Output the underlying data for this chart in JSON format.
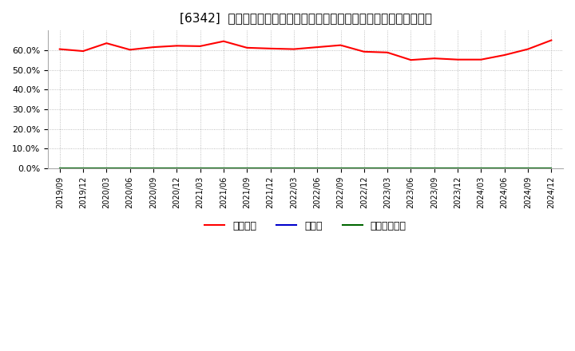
{
  "title": "[6342]  自己資本、のれん、繰延税金資産の総資産に対する比率の推移",
  "dates": [
    "2019/09",
    "2019/12",
    "2020/03",
    "2020/06",
    "2020/09",
    "2020/12",
    "2021/03",
    "2021/06",
    "2021/09",
    "2021/12",
    "2022/03",
    "2022/06",
    "2022/09",
    "2022/12",
    "2023/03",
    "2023/06",
    "2023/09",
    "2023/12",
    "2024/03",
    "2024/06",
    "2024/09",
    "2024/12"
  ],
  "equity_ratio": [
    60.5,
    59.5,
    63.5,
    60.2,
    61.5,
    62.2,
    62.0,
    64.5,
    61.2,
    60.8,
    60.5,
    61.5,
    62.5,
    59.2,
    58.8,
    55.0,
    55.8,
    55.2,
    55.2,
    57.5,
    60.5,
    65.0
  ],
  "noren_ratio": [
    0.0,
    0.0,
    0.0,
    0.0,
    0.0,
    0.0,
    0.0,
    0.0,
    0.0,
    0.0,
    0.0,
    0.0,
    0.0,
    0.0,
    0.0,
    0.0,
    0.0,
    0.0,
    0.0,
    0.0,
    0.0,
    0.0
  ],
  "deferred_tax_ratio": [
    0.0,
    0.0,
    0.0,
    0.0,
    0.0,
    0.0,
    0.0,
    0.0,
    0.0,
    0.0,
    0.0,
    0.0,
    0.0,
    0.0,
    0.0,
    0.0,
    0.0,
    0.0,
    0.0,
    0.0,
    0.0,
    0.0
  ],
  "equity_color": "#ff0000",
  "noren_color": "#0000cc",
  "deferred_tax_color": "#006600",
  "ylim": [
    0,
    70
  ],
  "yticks": [
    0,
    10,
    20,
    30,
    40,
    50,
    60
  ],
  "ytick_labels": [
    "0.0%",
    "10.0%",
    "20.0%",
    "30.0%",
    "40.0%",
    "50.0%",
    "60.0%"
  ],
  "background_color": "#ffffff",
  "plot_bg_color": "#ffffff",
  "grid_color": "#999999",
  "legend_labels": [
    "自己資本",
    "のれん",
    "繰延税金資産"
  ],
  "title_fontsize": 11,
  "line_width": 1.5
}
